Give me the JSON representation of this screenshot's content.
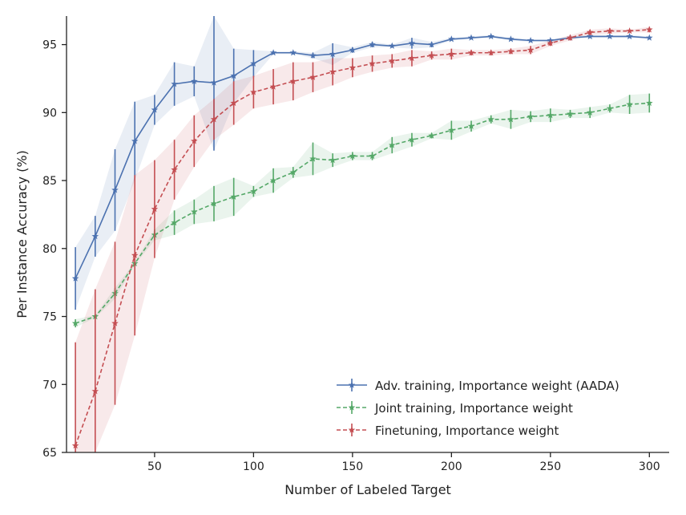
{
  "chart_data": {
    "type": "line",
    "title": "",
    "xlabel": "Number of Labeled Target",
    "ylabel": "Per Instance Accuracy (%)",
    "xlim": [
      5.5,
      310
    ],
    "ylim": [
      65,
      97.1
    ],
    "xticks": [
      50,
      100,
      150,
      200,
      250,
      300
    ],
    "yticks": [
      65,
      70,
      75,
      80,
      85,
      90,
      95
    ],
    "grid": false,
    "legend_position": "bottom-right",
    "x": [
      10,
      20,
      30,
      40,
      50,
      60,
      70,
      80,
      90,
      100,
      110,
      120,
      130,
      140,
      150,
      160,
      170,
      180,
      190,
      200,
      210,
      220,
      230,
      240,
      250,
      260,
      270,
      280,
      290,
      300
    ],
    "series": [
      {
        "name": "Adv. training, Importance weight (AADA)",
        "color": "#4c72b0",
        "dashed": false,
        "values": [
          77.8,
          80.9,
          84.3,
          87.9,
          90.2,
          92.1,
          92.3,
          92.2,
          92.7,
          93.6,
          94.4,
          94.4,
          94.2,
          94.3,
          94.6,
          95.0,
          94.9,
          95.1,
          95.0,
          95.4,
          95.5,
          95.6,
          95.4,
          95.3,
          95.3,
          95.5,
          95.6,
          95.6,
          95.6,
          95.5
        ],
        "errors": [
          2.3,
          1.5,
          3.0,
          2.9,
          1.1,
          1.6,
          1.1,
          5.0,
          2.0,
          1.0,
          0.1,
          0.1,
          0.2,
          0.8,
          0.2,
          0.2,
          0.1,
          0.4,
          0.2,
          0.1,
          0.1,
          0.1,
          0.1,
          0.1,
          0.1,
          0.1,
          0.1,
          0.1,
          0.1,
          0.1
        ]
      },
      {
        "name": "Joint training, Importance weight",
        "color": "#55a868",
        "dashed": true,
        "values": [
          74.5,
          75.0,
          76.7,
          78.9,
          81.0,
          81.9,
          82.7,
          83.3,
          83.8,
          84.2,
          85.0,
          85.6,
          86.6,
          86.5,
          86.8,
          86.8,
          87.6,
          88.0,
          88.3,
          88.7,
          89.0,
          89.5,
          89.5,
          89.7,
          89.8,
          89.9,
          90.0,
          90.3,
          90.6,
          90.7
        ],
        "errors": [
          0.3,
          0.1,
          0.4,
          0.1,
          0.4,
          0.9,
          0.9,
          1.3,
          1.4,
          0.4,
          0.9,
          0.4,
          1.2,
          0.5,
          0.3,
          0.3,
          0.6,
          0.5,
          0.2,
          0.7,
          0.4,
          0.3,
          0.7,
          0.4,
          0.5,
          0.3,
          0.4,
          0.3,
          0.7,
          0.7
        ]
      },
      {
        "name": "Finetuning, Importance weight",
        "color": "#c44e52",
        "dashed": true,
        "values": [
          65.5,
          69.5,
          74.5,
          79.5,
          82.9,
          85.8,
          87.9,
          89.5,
          90.7,
          91.5,
          91.9,
          92.3,
          92.6,
          93.0,
          93.3,
          93.6,
          93.8,
          94.0,
          94.2,
          94.3,
          94.4,
          94.4,
          94.5,
          94.6,
          95.1,
          95.5,
          95.9,
          96.0,
          96.0,
          96.1
        ],
        "errors": [
          7.6,
          7.5,
          6.0,
          5.9,
          3.6,
          2.2,
          1.9,
          1.5,
          1.6,
          1.2,
          1.3,
          1.4,
          1.1,
          1.0,
          0.7,
          0.6,
          0.5,
          0.6,
          0.3,
          0.4,
          0.2,
          0.2,
          0.2,
          0.3,
          0.2,
          0.2,
          0.2,
          0.2,
          0.1,
          0.2
        ]
      }
    ]
  }
}
